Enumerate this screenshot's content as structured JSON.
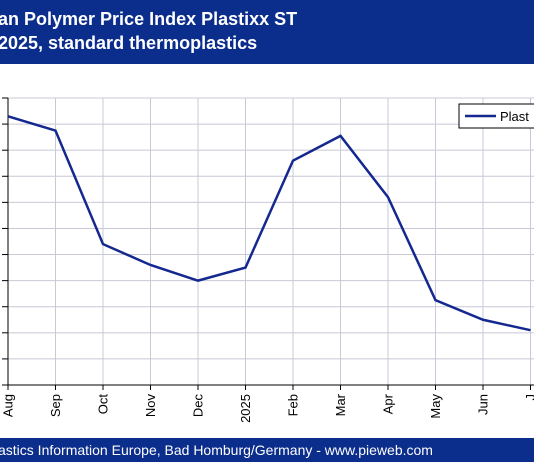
{
  "header": {
    "title_line1": "an Polymer Price Index Plastixx ST",
    "title_line2": "2025, standard thermoplastics"
  },
  "footer": {
    "text": "astics Information Europe, Bad Homburg/Germany - www.pieweb.com"
  },
  "colors": {
    "banner": "#0b2d8c",
    "series_line": "#14288f",
    "grid": "#c8c8d8"
  },
  "chart_data": {
    "type": "line",
    "title": "",
    "xlabel": "",
    "ylabel": "",
    "categories": [
      "Aug",
      "Sep",
      "Oct",
      "Nov",
      "Dec",
      "2025",
      "Feb",
      "Mar",
      "Apr",
      "May",
      "Jun",
      "J"
    ],
    "ylim": [
      0,
      11
    ],
    "grid": true,
    "legend_position": "top-right",
    "series": [
      {
        "name": "Plast",
        "values": [
          10.3,
          9.75,
          5.4,
          4.6,
          4.0,
          4.5,
          8.6,
          9.55,
          7.2,
          3.25,
          2.5,
          2.1
        ]
      }
    ]
  }
}
